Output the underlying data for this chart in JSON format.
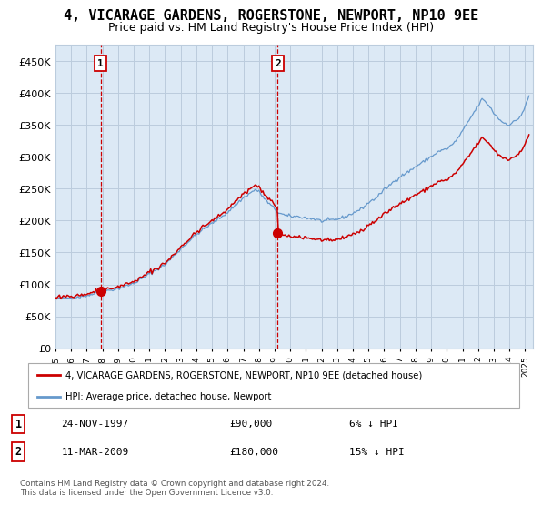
{
  "title": "4, VICARAGE GARDENS, ROGERSTONE, NEWPORT, NP10 9EE",
  "subtitle": "Price paid vs. HM Land Registry's House Price Index (HPI)",
  "title_fontsize": 11,
  "subtitle_fontsize": 9,
  "background_color": "#ffffff",
  "legend_label_red": "4, VICARAGE GARDENS, ROGERSTONE, NEWPORT, NP10 9EE (detached house)",
  "legend_label_blue": "HPI: Average price, detached house, Newport",
  "sale1_label": "24-NOV-1997",
  "sale1_price": 90000,
  "sale1_text": "£90,000",
  "sale1_pct": "6% ↓ HPI",
  "sale2_label": "11-MAR-2009",
  "sale2_price": 180000,
  "sale2_text": "£180,000",
  "sale2_pct": "15% ↓ HPI",
  "footer": "Contains HM Land Registry data © Crown copyright and database right 2024.\nThis data is licensed under the Open Government Licence v3.0.",
  "ylim_min": 0,
  "ylim_max": 475000,
  "yticks": [
    0,
    50000,
    100000,
    150000,
    200000,
    250000,
    300000,
    350000,
    400000,
    450000
  ],
  "red_color": "#cc0000",
  "blue_color": "#6699cc",
  "vline_color": "#cc0000",
  "grid_color": "#bbccdd",
  "shade_color": "#dce9f5",
  "hpi_anchors_t": [
    1995.0,
    1996.0,
    1997.0,
    1997.5,
    1998.0,
    1999.0,
    2000.0,
    2001.0,
    2002.0,
    2003.0,
    2004.0,
    2005.0,
    2006.0,
    2007.0,
    2007.75,
    2008.0,
    2008.5,
    2009.25,
    2009.75,
    2010.5,
    2011.0,
    2011.5,
    2012.0,
    2012.5,
    2013.0,
    2013.5,
    2014.0,
    2014.5,
    2015.0,
    2015.5,
    2016.0,
    2016.5,
    2017.0,
    2017.5,
    2018.0,
    2018.5,
    2019.0,
    2019.5,
    2020.0,
    2020.5,
    2021.0,
    2021.5,
    2022.0,
    2022.25,
    2022.5,
    2022.75,
    2023.0,
    2023.5,
    2024.0,
    2024.5,
    2024.75,
    2025.0,
    2025.25
  ],
  "hpi_anchors_v": [
    77000,
    78500,
    82000,
    85000,
    88000,
    93000,
    100000,
    115000,
    130000,
    155000,
    178000,
    195000,
    212000,
    235000,
    248000,
    245000,
    230000,
    213000,
    208000,
    207000,
    205000,
    203000,
    200000,
    201000,
    203000,
    206000,
    212000,
    218000,
    228000,
    236000,
    248000,
    258000,
    268000,
    275000,
    284000,
    292000,
    300000,
    308000,
    312000,
    322000,
    340000,
    360000,
    380000,
    390000,
    385000,
    378000,
    368000,
    355000,
    350000,
    358000,
    365000,
    378000,
    395000
  ],
  "noise_seed": 42,
  "noise_scale_hpi": 2500,
  "noise_scale_red": 2200,
  "sale1_t": 1997.896,
  "sale2_t": 2009.192
}
